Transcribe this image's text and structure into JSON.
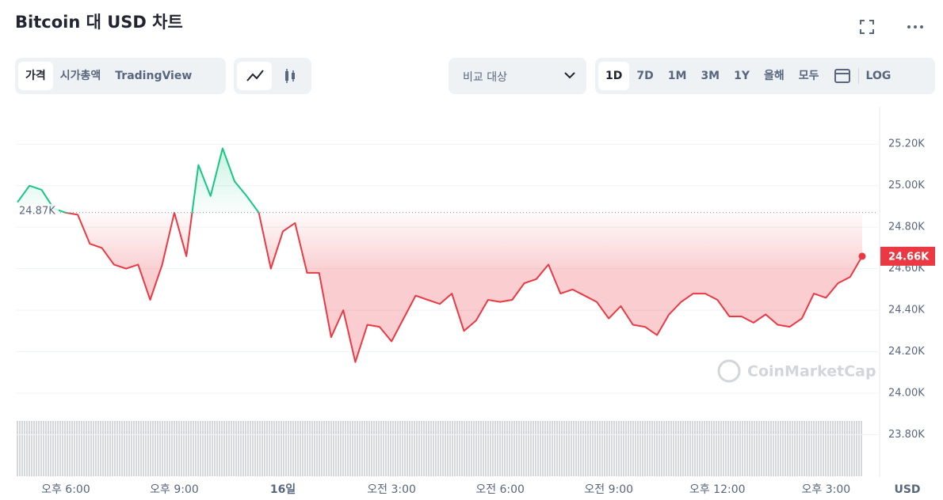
{
  "header": {
    "title": "Bitcoin 대 USD 차트"
  },
  "toolbar": {
    "views": [
      "가격",
      "시가총액",
      "TradingView"
    ],
    "compare": "비교 대상",
    "ranges": [
      "1D",
      "7D",
      "1M",
      "3M",
      "1Y",
      "올해",
      "모두"
    ],
    "log": "LOG"
  },
  "currency": "USD",
  "watermark": "CoinMarketCap",
  "chart_data": {
    "type": "line",
    "categories": [
      null,
      null,
      null,
      null,
      "오후 6:00",
      null,
      null,
      null,
      null,
      null,
      null,
      null,
      null,
      "오후 9:00",
      null,
      null,
      null,
      null,
      null,
      null,
      null,
      null,
      "16일",
      null,
      null,
      null,
      null,
      null,
      null,
      null,
      null,
      "오전 3:00",
      null,
      null,
      null,
      null,
      null,
      null,
      null,
      null,
      "오전 6:00",
      null,
      null,
      null,
      null,
      null,
      null,
      null,
      null,
      "오전 9:00",
      null,
      null,
      null,
      null,
      null,
      null,
      null,
      null,
      "오후 12:00",
      null,
      null,
      null,
      null,
      null,
      null,
      null,
      null,
      "오후 3:00",
      null,
      null,
      null
    ],
    "series": [
      {
        "name": "Bitcoin",
        "color": "#ea3943",
        "color_above": "#16c784",
        "values": [
          24920,
          25000,
          24980,
          24890,
          24870,
          24860,
          24720,
          24700,
          24620,
          24600,
          24620,
          24450,
          24620,
          24870,
          24660,
          25100,
          24950,
          25180,
          25020,
          24950,
          24870,
          24600,
          24780,
          24820,
          24580,
          24580,
          24270,
          24400,
          24150,
          24330,
          24320,
          24250,
          24360,
          24470,
          24450,
          24430,
          24480,
          24300,
          24350,
          24450,
          24440,
          24450,
          24530,
          24550,
          24620,
          24480,
          24500,
          24470,
          24440,
          24360,
          24420,
          24330,
          24320,
          24280,
          24380,
          24440,
          24480,
          24480,
          24450,
          24370,
          24370,
          24340,
          24380,
          24330,
          24320,
          24360,
          24480,
          24460,
          24530,
          24560,
          24660
        ]
      }
    ],
    "annotations": [
      {
        "value": 24870,
        "label": "24.87K"
      },
      {
        "value": 24660,
        "label": "24.66K"
      }
    ],
    "ylim": [
      23600,
      25380
    ],
    "yticks": [
      {
        "value": 23800,
        "label": "23.80K"
      },
      {
        "value": 24000,
        "label": "24.00K"
      },
      {
        "value": 24200,
        "label": "24.20K"
      },
      {
        "value": 24400,
        "label": "24.40K"
      },
      {
        "value": 24600,
        "label": "24.60K"
      },
      {
        "value": 24800,
        "label": "24.80K"
      },
      {
        "value": 25000,
        "label": "25.00K"
      },
      {
        "value": 25200,
        "label": "25.20K"
      }
    ],
    "grid": true
  }
}
